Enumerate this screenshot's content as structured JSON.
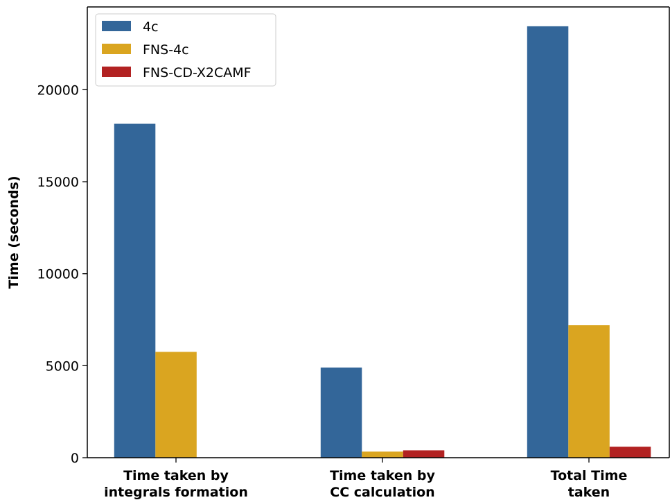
{
  "chart_data": {
    "type": "bar",
    "title": "",
    "xlabel": "",
    "ylabel": "Time (seconds)",
    "categories": [
      [
        "Time taken by",
        "integrals formation"
      ],
      [
        "Time taken by",
        "CC calculation"
      ],
      [
        "Total Time",
        "taken"
      ]
    ],
    "series": [
      {
        "name": "4c",
        "color": "#336699",
        "values": [
          18150,
          4900,
          23450
        ]
      },
      {
        "name": "FNS-4c",
        "color": "#DAA520",
        "values": [
          5750,
          330,
          7200
        ]
      },
      {
        "name": "FNS-CD-X2CAMF",
        "color": "#B22222",
        "values": [
          0,
          400,
          600
        ]
      }
    ],
    "ylim": [
      0,
      24500
    ],
    "yticks": [
      0,
      5000,
      10000,
      15000,
      20000
    ],
    "legend": {
      "position": "top-left"
    },
    "grid": false
  }
}
